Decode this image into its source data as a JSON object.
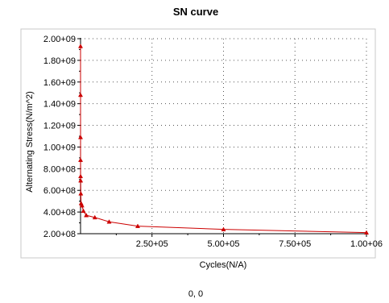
{
  "status_text": "0, 0",
  "chart_data": {
    "type": "line",
    "title": "SN curve",
    "xlabel": "Cycles(N/A)",
    "ylabel": "Alternating Stress(N/m^2)",
    "xlim": [
      0,
      1000000
    ],
    "ylim": [
      200000000,
      2000000000
    ],
    "x_ticks": [
      250000,
      500000,
      750000,
      1000000
    ],
    "x_tick_labels": [
      "2.50+05",
      "5.00+05",
      "7.50+05",
      "1.00+06"
    ],
    "y_ticks": [
      200000000,
      400000000,
      600000000,
      800000000,
      1000000000,
      1200000000,
      1400000000,
      1600000000,
      1800000000,
      2000000000
    ],
    "y_tick_labels": [
      "2.00+08",
      "4.00+08",
      "6.00+08",
      "8.00+08",
      "1.00+09",
      "1.20+09",
      "1.40+09",
      "1.60+09",
      "1.80+09",
      "2.00+09"
    ],
    "grid": true,
    "series": [
      {
        "color": "#cc0000",
        "marker": "triangle",
        "x": [
          10,
          20,
          50,
          100,
          200,
          500,
          1000,
          2000,
          5000,
          10000,
          20000,
          50000,
          100000,
          200000,
          500000,
          1000000
        ],
        "y": [
          1930000000,
          1480000000,
          1090000000,
          880000000,
          730000000,
          690000000,
          570000000,
          480000000,
          460000000,
          410000000,
          370000000,
          350000000,
          310000000,
          270000000,
          240000000,
          210000000
        ]
      }
    ]
  }
}
